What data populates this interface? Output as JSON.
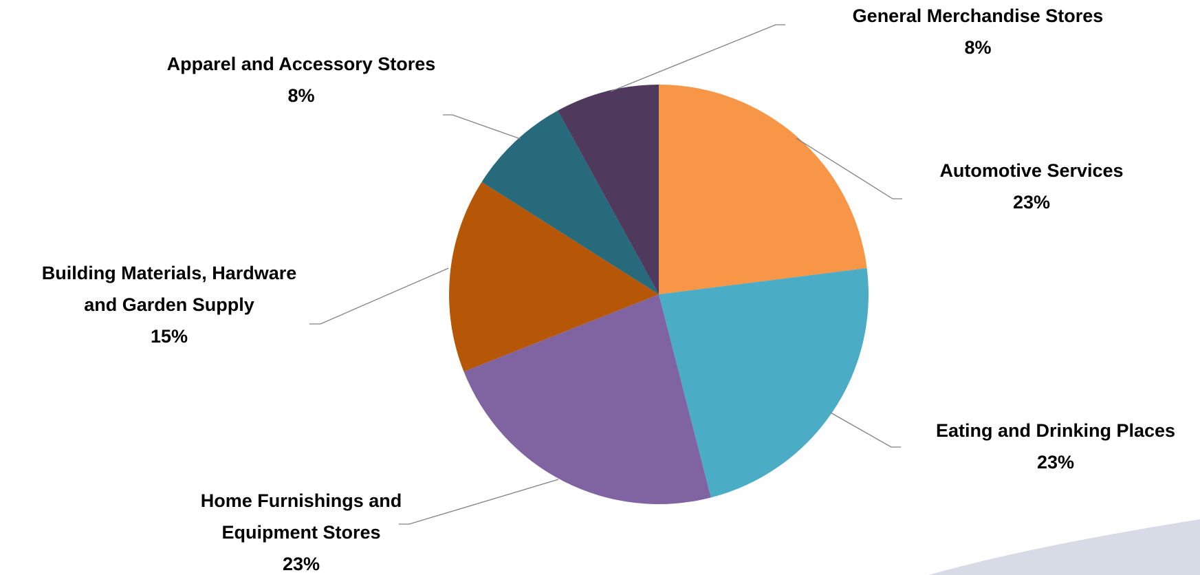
{
  "chart_data": {
    "type": "pie",
    "title": "",
    "slices": [
      {
        "label": [
          "Automotive Services"
        ],
        "percent_label": "23%",
        "value": 23,
        "color": "#f79646"
      },
      {
        "label": [
          "Eating and Drinking Places"
        ],
        "percent_label": "23%",
        "value": 23,
        "color": "#4bacc6"
      },
      {
        "label": [
          "Home Furnishings and",
          "Equipment Stores"
        ],
        "percent_label": "23%",
        "value": 23,
        "color": "#8064a2"
      },
      {
        "label": [
          "Building Materials, Hardware",
          "and Garden Supply"
        ],
        "percent_label": "15%",
        "value": 15,
        "color": "#b65708"
      },
      {
        "label": [
          "Apparel and Accessory Stores"
        ],
        "percent_label": "8%",
        "value": 8,
        "color": "#276a7c"
      },
      {
        "label": [
          "General Merchandise Stores"
        ],
        "percent_label": "8%",
        "value": 8,
        "color": "#4f3a5e"
      }
    ],
    "start_angle": "12 o'clock",
    "direction": "clockwise",
    "legend": "none",
    "data_labels": "outside with leader lines"
  }
}
